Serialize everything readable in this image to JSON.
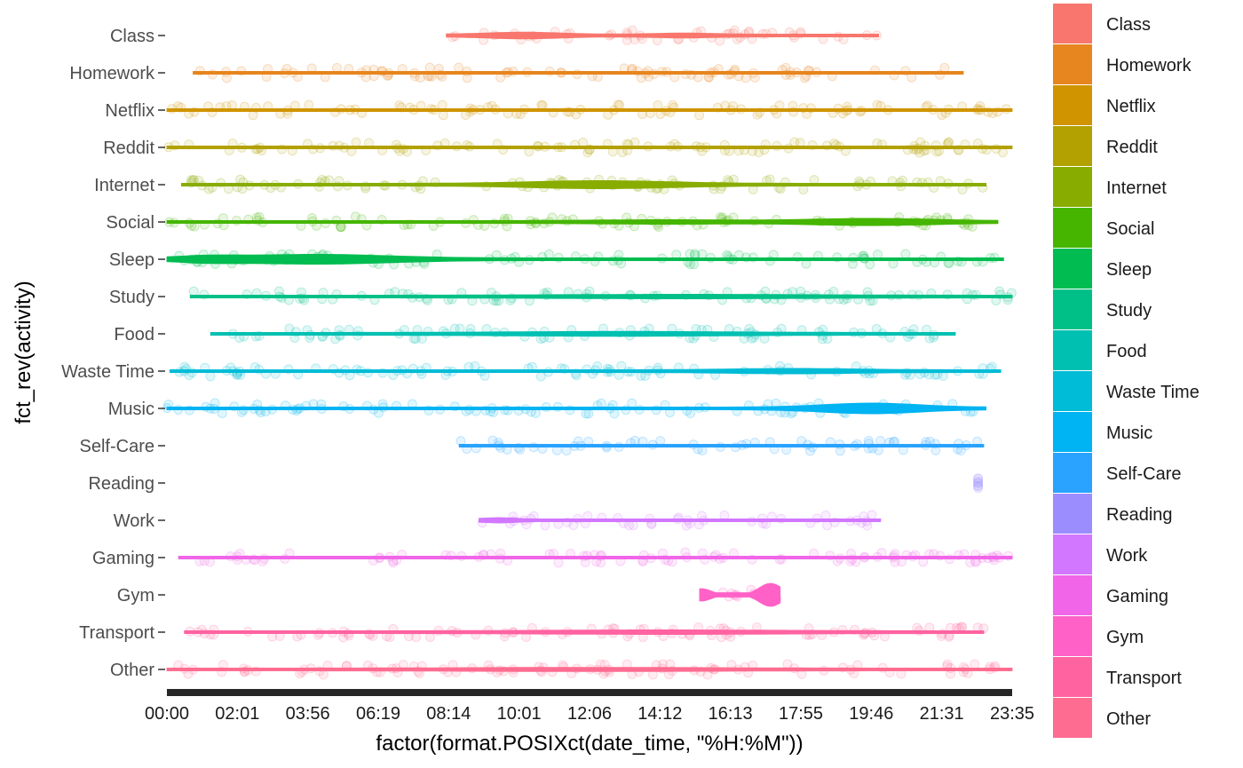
{
  "chart_data": {
    "type": "violin",
    "xlabel": "factor(format.POSIXct(date_time, \"%H:%M\"))",
    "ylabel": "fct_rev(activity)",
    "x_ticks": [
      "00:00",
      "02:01",
      "03:56",
      "06:19",
      "08:14",
      "10:01",
      "12:06",
      "14:12",
      "16:13",
      "17:55",
      "19:46",
      "21:31",
      "23:35"
    ],
    "categories": [
      "Class",
      "Homework",
      "Netflix",
      "Reddit",
      "Internet",
      "Social",
      "Sleep",
      "Study",
      "Food",
      "Waste Time",
      "Music",
      "Self-Care",
      "Reading",
      "Work",
      "Gaming",
      "Gym",
      "Transport",
      "Other"
    ],
    "colors": [
      "#F8766D",
      "#E7851E",
      "#D09400",
      "#B2A100",
      "#89AC00",
      "#45B500",
      "#00BC51",
      "#00C087",
      "#00C0B2",
      "#00BCD6",
      "#00B3F2",
      "#29A3FF",
      "#9C8DFF",
      "#D277FF",
      "#F166E8",
      "#FF61C7",
      "#FF63A0",
      "#FF6C91"
    ],
    "ranges": [
      {
        "activity": "Class",
        "start": "08:10",
        "end": "19:57"
      },
      {
        "activity": "Homework",
        "start": "00:45",
        "end": "22:09"
      },
      {
        "activity": "Netflix",
        "start": "00:00",
        "end": "23:35"
      },
      {
        "activity": "Reddit",
        "start": "00:00",
        "end": "23:35"
      },
      {
        "activity": "Internet",
        "start": "00:25",
        "end": "22:49"
      },
      {
        "activity": "Social",
        "start": "00:00",
        "end": "23:10"
      },
      {
        "activity": "Sleep",
        "start": "00:00",
        "end": "23:20"
      },
      {
        "activity": "Study",
        "start": "00:40",
        "end": "23:35"
      },
      {
        "activity": "Food",
        "start": "01:15",
        "end": "21:55"
      },
      {
        "activity": "Waste Time",
        "start": "00:05",
        "end": "23:15"
      },
      {
        "activity": "Music",
        "start": "00:00",
        "end": "22:49"
      },
      {
        "activity": "Self-Care",
        "start": "08:30",
        "end": "22:45"
      },
      {
        "activity": "Reading",
        "start": "22:35",
        "end": "22:35"
      },
      {
        "activity": "Work",
        "start": "09:00",
        "end": "20:00"
      },
      {
        "activity": "Gaming",
        "start": "00:20",
        "end": "23:35"
      },
      {
        "activity": "Gym",
        "start": "15:20",
        "end": "17:25"
      },
      {
        "activity": "Transport",
        "start": "00:30",
        "end": "22:45"
      },
      {
        "activity": "Other",
        "start": "00:00",
        "end": "23:35"
      }
    ],
    "legend_position": "right",
    "grid": false
  }
}
